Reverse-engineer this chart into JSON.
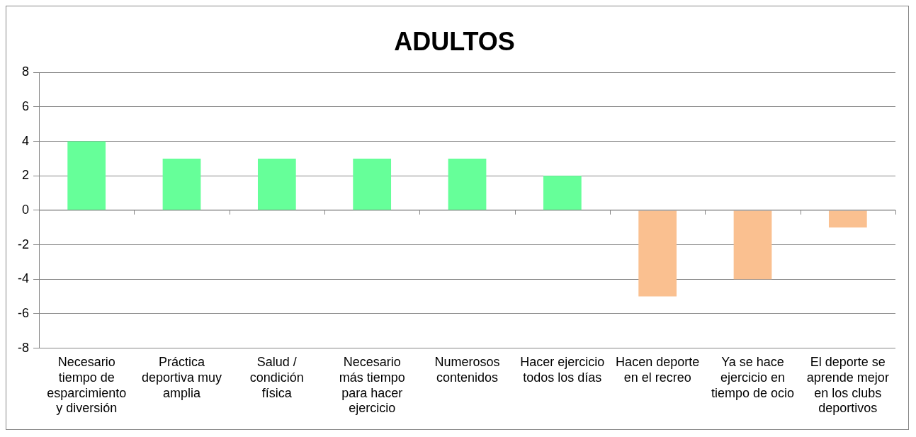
{
  "chart_data": {
    "type": "bar",
    "title": "ADULTOS",
    "categories": [
      "Necesario tiempo de esparcimiento y diversión",
      "Práctica deportiva muy amplia",
      "Salud / condición física",
      "Necesario más tiempo para hacer ejercicio",
      "Numerosos contenidos",
      "Hacer ejercicio todos los días",
      "Hacen deporte en el recreo",
      "Ya se hace ejercicio en tiempo de ocio",
      "El deporte se aprende mejor en los clubs deportivos"
    ],
    "values": [
      4,
      3,
      3,
      3,
      3,
      2,
      -5,
      -4,
      -1
    ],
    "colors": [
      "#66ff99",
      "#66ff99",
      "#66ff99",
      "#66ff99",
      "#66ff99",
      "#66ff99",
      "#fac090",
      "#fac090",
      "#fac090"
    ],
    "ylim": [
      -8,
      8
    ],
    "yticks": [
      -8,
      -6,
      -4,
      -2,
      0,
      2,
      4,
      6,
      8
    ],
    "grid": "y"
  }
}
